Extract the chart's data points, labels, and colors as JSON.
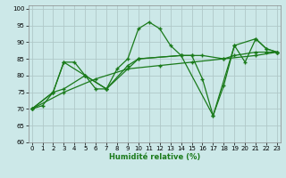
{
  "xlabel": "Humidité relative (%)",
  "bg_color": "#cce8e8",
  "grid_color": "#b0c8c8",
  "line_color": "#1a7a1a",
  "marker": "+",
  "xlim": [
    0,
    23
  ],
  "ylim": [
    60,
    101
  ],
  "yticks": [
    60,
    65,
    70,
    75,
    80,
    85,
    90,
    95,
    100
  ],
  "xticks": [
    0,
    1,
    2,
    3,
    4,
    5,
    6,
    7,
    8,
    9,
    10,
    11,
    12,
    13,
    14,
    15,
    16,
    17,
    18,
    19,
    20,
    21,
    22,
    23
  ],
  "series1": {
    "x": [
      0,
      1,
      2,
      3,
      4,
      5,
      6,
      7,
      8,
      9,
      10,
      11,
      12,
      13,
      14,
      15,
      16,
      17,
      18,
      19,
      20,
      21,
      22,
      23
    ],
    "y": [
      70,
      71,
      75,
      84,
      84,
      80,
      76,
      76,
      82,
      85,
      94,
      96,
      94,
      89,
      86,
      86,
      79,
      68,
      77,
      89,
      84,
      91,
      88,
      87
    ]
  },
  "series2": {
    "x": [
      0,
      2,
      3,
      5,
      7,
      9,
      10,
      14,
      15,
      16,
      18,
      19,
      21,
      22,
      23
    ],
    "y": [
      70,
      75,
      84,
      80,
      76,
      83,
      85,
      86,
      86,
      86,
      85,
      86,
      87,
      87,
      87
    ]
  },
  "series3": {
    "x": [
      0,
      2,
      3,
      5,
      7,
      10,
      14,
      17,
      19,
      21,
      22,
      23
    ],
    "y": [
      70,
      75,
      76,
      80,
      76,
      85,
      86,
      68,
      89,
      91,
      88,
      87
    ]
  },
  "series4": {
    "x": [
      0,
      3,
      6,
      9,
      12,
      15,
      18,
      21,
      23
    ],
    "y": [
      70,
      75,
      79,
      82,
      83,
      84,
      85,
      86,
      87
    ]
  }
}
